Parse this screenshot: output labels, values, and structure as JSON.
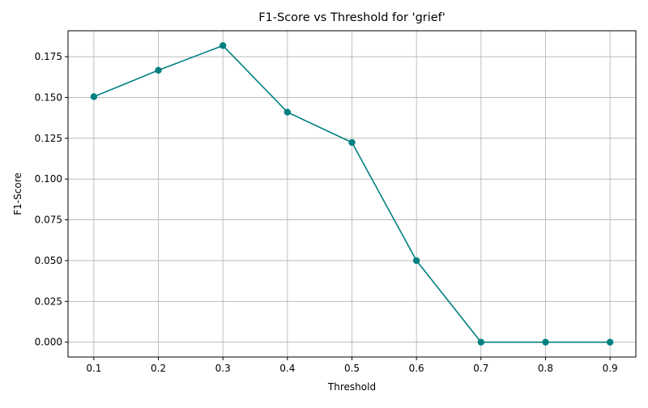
{
  "chart_data": {
    "type": "line",
    "title": "F1-Score vs Threshold for 'grief'",
    "xlabel": "Threshold",
    "ylabel": "F1-Score",
    "x": [
      0.1,
      0.2,
      0.3,
      0.4,
      0.5,
      0.6,
      0.7,
      0.8,
      0.9
    ],
    "series": [
      {
        "values": [
          0.1505,
          0.1667,
          0.1818,
          0.141,
          0.1224,
          0.05,
          0.0,
          0.0,
          0.0
        ],
        "color": "#008080",
        "marker": "circle"
      }
    ],
    "xlim": [
      0.06,
      0.94
    ],
    "ylim": [
      -0.0091,
      0.1909
    ],
    "xticks": [
      0.1,
      0.2,
      0.3,
      0.4,
      0.5,
      0.6,
      0.7,
      0.8,
      0.9
    ],
    "xtick_labels": [
      "0.1",
      "0.2",
      "0.3",
      "0.4",
      "0.5",
      "0.6",
      "0.7",
      "0.8",
      "0.9"
    ],
    "yticks": [
      0.0,
      0.025,
      0.05,
      0.075,
      0.1,
      0.125,
      0.15,
      0.175
    ],
    "ytick_labels": [
      "0.000",
      "0.025",
      "0.050",
      "0.075",
      "0.100",
      "0.125",
      "0.150",
      "0.175"
    ],
    "grid": true,
    "legend": "none"
  }
}
